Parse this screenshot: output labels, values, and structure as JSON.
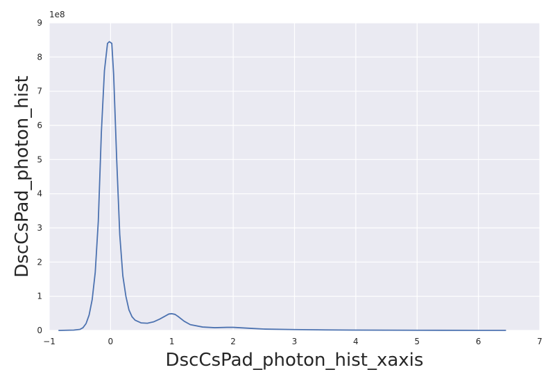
{
  "chart_data": {
    "type": "line",
    "title": "",
    "xlabel": "DscCsPad_photon_hist_xaxis",
    "ylabel": "DscCsPad_photon_hist",
    "xlim": [
      -1,
      7
    ],
    "ylim": [
      0,
      9
    ],
    "y_offset_label": "1e8",
    "x_ticks": [
      -1,
      0,
      1,
      2,
      3,
      4,
      5,
      6,
      7
    ],
    "y_ticks": [
      0,
      1,
      2,
      3,
      4,
      5,
      6,
      7,
      8,
      9
    ],
    "x_tick_labels": [
      "−1",
      "0",
      "1",
      "2",
      "3",
      "4",
      "5",
      "6",
      "7"
    ],
    "y_tick_labels": [
      "0",
      "1",
      "2",
      "3",
      "4",
      "5",
      "6",
      "7",
      "8",
      "9"
    ],
    "grid": true,
    "colors": {
      "background": "#eaeaf2",
      "grid": "#ffffff",
      "line": "#4c72b0"
    },
    "series": [
      {
        "name": "DscCsPad_photon_hist",
        "x": [
          -0.85,
          -0.6,
          -0.5,
          -0.45,
          -0.4,
          -0.35,
          -0.3,
          -0.25,
          -0.2,
          -0.15,
          -0.1,
          -0.05,
          -0.02,
          0.02,
          0.05,
          0.1,
          0.15,
          0.2,
          0.25,
          0.3,
          0.35,
          0.4,
          0.5,
          0.6,
          0.7,
          0.8,
          0.9,
          0.95,
          1.0,
          1.05,
          1.1,
          1.2,
          1.3,
          1.5,
          1.7,
          1.9,
          2.0,
          2.1,
          2.3,
          2.5,
          3.0,
          3.5,
          4.0,
          5.0,
          6.0,
          6.45
        ],
        "y": [
          0,
          0.01,
          0.03,
          0.08,
          0.2,
          0.45,
          0.9,
          1.7,
          3.2,
          5.8,
          7.6,
          8.4,
          8.45,
          8.4,
          7.5,
          5.0,
          2.8,
          1.6,
          1.0,
          0.6,
          0.4,
          0.3,
          0.22,
          0.21,
          0.25,
          0.33,
          0.43,
          0.48,
          0.49,
          0.47,
          0.41,
          0.27,
          0.17,
          0.1,
          0.08,
          0.09,
          0.09,
          0.08,
          0.06,
          0.04,
          0.025,
          0.015,
          0.01,
          0.005,
          0.003,
          0.002
        ]
      }
    ]
  }
}
